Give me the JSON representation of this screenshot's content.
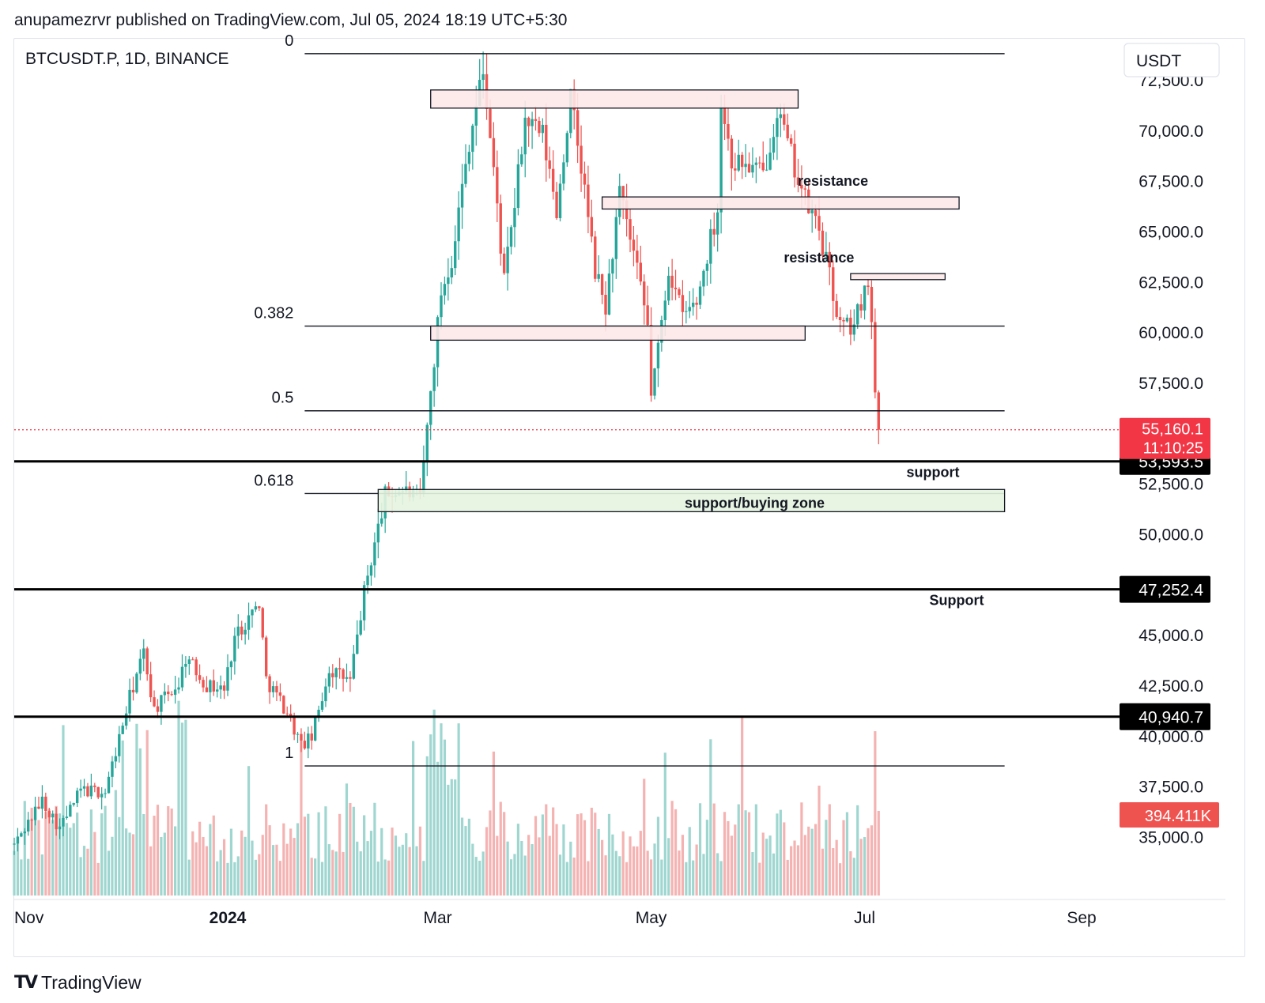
{
  "header": {
    "published": "anupamezrvr published on TradingView.com, Jul 05, 2024 18:19 UTC+5:30"
  },
  "footer": {
    "brand": "TradingView"
  },
  "colors": {
    "up": "#26a69a",
    "down": "#ef5350",
    "up_volume": "#9fd6d0",
    "down_volume": "#f4b3b2",
    "resistance_fill": "#fde8e8",
    "support_fill": "#e6f4e0",
    "price_badge": "#f23645",
    "level_badge": "#000000"
  },
  "chart_data": {
    "type": "candlestick",
    "symbol": "BTCUSDT.P, 1D, BINANCE",
    "currency": "USDT",
    "y_axis": {
      "ticks": [
        35000,
        37500,
        40000,
        42500,
        45000,
        47500,
        50000,
        52500,
        57500,
        60000,
        62500,
        65000,
        67500,
        70000,
        72500
      ],
      "tick_labels": [
        "35,000.0",
        "37,500.0",
        "40,000.0",
        "42,500.0",
        "45,000.0",
        "47,500.0",
        "50,000.0",
        "52,500.0",
        "57,500.0",
        "60,000.0",
        "62,500.0",
        "65,000.0",
        "67,500.0",
        "70,000.0",
        "72,500.0"
      ],
      "range": [
        32000,
        74500
      ]
    },
    "x_axis": {
      "range": [
        "2023-11-01",
        "2024-09-10"
      ],
      "ticks": [
        {
          "date": "2023-11-01",
          "label": "Nov",
          "bold": false
        },
        {
          "date": "2024-01-01",
          "label": "2024",
          "bold": true
        },
        {
          "date": "2024-03-01",
          "label": "Mar",
          "bold": false
        },
        {
          "date": "2024-05-01",
          "label": "May",
          "bold": false
        },
        {
          "date": "2024-07-01",
          "label": "Jul",
          "bold": false
        },
        {
          "date": "2024-09-01",
          "label": "Sep",
          "bold": false
        }
      ]
    },
    "price_path": [
      [
        "2023-11-01",
        34600
      ],
      [
        "2023-11-09",
        36800
      ],
      [
        "2023-11-14",
        35400
      ],
      [
        "2023-11-20",
        37300
      ],
      [
        "2023-11-27",
        37200
      ],
      [
        "2023-12-04",
        41900
      ],
      [
        "2023-12-08",
        44100
      ],
      [
        "2023-12-11",
        41300
      ],
      [
        "2023-12-18",
        42600
      ],
      [
        "2023-12-20",
        43900
      ],
      [
        "2023-12-26",
        42500
      ],
      [
        "2023-12-31",
        42300
      ],
      [
        "2024-01-03",
        44900
      ],
      [
        "2024-01-10",
        46600
      ],
      [
        "2024-01-12",
        42800
      ],
      [
        "2024-01-18",
        41200
      ],
      [
        "2024-01-22",
        39500
      ],
      [
        "2024-01-25",
        39900
      ],
      [
        "2024-01-30",
        43300
      ],
      [
        "2024-02-05",
        42700
      ],
      [
        "2024-02-09",
        47100
      ],
      [
        "2024-02-15",
        51900
      ],
      [
        "2024-02-20",
        52200
      ],
      [
        "2024-02-25",
        51700
      ],
      [
        "2024-02-28",
        57000
      ],
      [
        "2024-03-02",
        62000
      ],
      [
        "2024-03-05",
        63700
      ],
      [
        "2024-03-10",
        69500
      ],
      [
        "2024-03-14",
        73000
      ],
      [
        "2024-03-17",
        68000
      ],
      [
        "2024-03-20",
        62500
      ],
      [
        "2024-03-22",
        65000
      ],
      [
        "2024-03-26",
        70500
      ],
      [
        "2024-03-31",
        69700
      ],
      [
        "2024-04-04",
        66000
      ],
      [
        "2024-04-08",
        71600
      ],
      [
        "2024-04-12",
        67000
      ],
      [
        "2024-04-15",
        63000
      ],
      [
        "2024-04-18",
        61200
      ],
      [
        "2024-04-22",
        66800
      ],
      [
        "2024-04-26",
        63800
      ],
      [
        "2024-04-30",
        60300
      ],
      [
        "2024-05-01",
        57000
      ],
      [
        "2024-05-03",
        59100
      ],
      [
        "2024-05-06",
        63200
      ],
      [
        "2024-05-10",
        60800
      ],
      [
        "2024-05-14",
        61500
      ],
      [
        "2024-05-20",
        66200
      ],
      [
        "2024-05-21",
        71400
      ],
      [
        "2024-05-24",
        68500
      ],
      [
        "2024-05-28",
        68300
      ],
      [
        "2024-06-02",
        67800
      ],
      [
        "2024-06-06",
        71100
      ],
      [
        "2024-06-09",
        69300
      ],
      [
        "2024-06-14",
        66500
      ],
      [
        "2024-06-18",
        65100
      ],
      [
        "2024-06-24",
        60300
      ],
      [
        "2024-06-28",
        60300
      ],
      [
        "2024-07-02",
        62800
      ],
      [
        "2024-07-03",
        60200
      ],
      [
        "2024-07-04",
        57000
      ],
      [
        "2024-07-05",
        55160
      ]
    ],
    "volume_scale": {
      "base": 70000,
      "peak": 510000
    },
    "last_volume": "394.411K",
    "current_price": {
      "value": 55160.1,
      "label": "55,160.1",
      "countdown": "11:10:25"
    },
    "horizontal_levels": [
      {
        "value": 53593.5,
        "label": "53,593.5",
        "note": "support"
      },
      {
        "value": 47252.4,
        "label": "47,252.4",
        "note": "Support"
      },
      {
        "value": 40940.7,
        "label": "40,940.7",
        "note": ""
      }
    ],
    "fibonacci": {
      "start": "2024-01-23",
      "end": "2024-08-10",
      "levels": [
        {
          "ratio": "0",
          "value": 73800
        },
        {
          "ratio": "0.382",
          "value": 60300
        },
        {
          "ratio": "0.5",
          "value": 56100
        },
        {
          "ratio": "0.618",
          "value": 52000
        },
        {
          "ratio": "1",
          "value": 38500
        }
      ]
    },
    "zones": [
      {
        "kind": "resistance",
        "start": "2024-02-28",
        "end": "2024-06-12",
        "low": 71100,
        "high": 72000,
        "label": ""
      },
      {
        "kind": "resistance",
        "start": "2024-04-17",
        "end": "2024-07-28",
        "low": 66100,
        "high": 66700,
        "label": "resistance"
      },
      {
        "kind": "resistance",
        "start": "2024-06-27",
        "end": "2024-07-24",
        "low": 62600,
        "high": 62900,
        "label": "resistance"
      },
      {
        "kind": "resistance",
        "start": "2024-02-28",
        "end": "2024-06-14",
        "low": 59600,
        "high": 60300,
        "label": ""
      },
      {
        "kind": "support",
        "start": "2024-02-13",
        "end": "2024-08-10",
        "low": 51100,
        "high": 52200,
        "label": "support/buying zone"
      }
    ]
  }
}
